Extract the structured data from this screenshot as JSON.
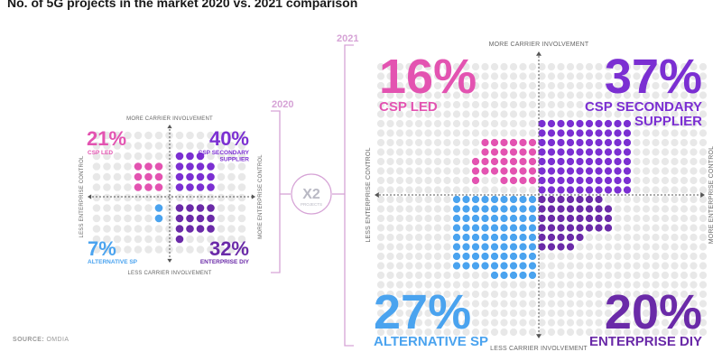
{
  "title": "No. of 5G projects in the market 2020 vs. 2021 comparison",
  "source": {
    "label": "SOURCE:",
    "value": "OMDIA"
  },
  "multiplier": {
    "value": "X2",
    "label": "PROJECTS"
  },
  "axis_labels": {
    "top": "MORE CARRIER INVOLVEMENT",
    "bottom": "LESS CARRIER INVOLVEMENT",
    "left": "LESS ENTERPRISE CONTROL",
    "right": "MORE ENTERPRISE CONTROL"
  },
  "colors": {
    "csp_led": "#e353b1",
    "csp_secondary_supplier": "#7b2fd2",
    "alternative_sp": "#4aa3ef",
    "enterprise_diy": "#6a2aa8",
    "empty_dot": "#e8e8e8",
    "bracket": "#d6a3d6",
    "axis": "#555555"
  },
  "chart_data": [
    {
      "type": "quadrant-dot-matrix",
      "year": "2020",
      "quadrants": [
        {
          "key": "csp_led",
          "label": "CSP LED",
          "percent": "21%",
          "value": 21
        },
        {
          "key": "csp_secondary_supplier",
          "label": "CSP SECONDARY SUPPLIER",
          "percent": "40%",
          "value": 40
        },
        {
          "key": "alternative_sp",
          "label": "ALTERNATIVE SP",
          "percent": "7%",
          "value": 7
        },
        {
          "key": "enterprise_diy",
          "label": "ENTERPRISE DIY",
          "percent": "32%",
          "value": 32
        }
      ]
    },
    {
      "type": "quadrant-dot-matrix",
      "year": "2021",
      "quadrants": [
        {
          "key": "csp_led",
          "label": "CSP LED",
          "percent": "16%",
          "value": 16
        },
        {
          "key": "csp_secondary_supplier",
          "label": "CSP SECONDARY SUPPLIER",
          "percent": "37%",
          "value": 37
        },
        {
          "key": "alternative_sp",
          "label": "ALTERNATIVE SP",
          "percent": "27%",
          "value": 27
        },
        {
          "key": "enterprise_diy",
          "label": "ENTERPRISE DIY",
          "percent": "20%",
          "value": 20
        }
      ]
    }
  ]
}
